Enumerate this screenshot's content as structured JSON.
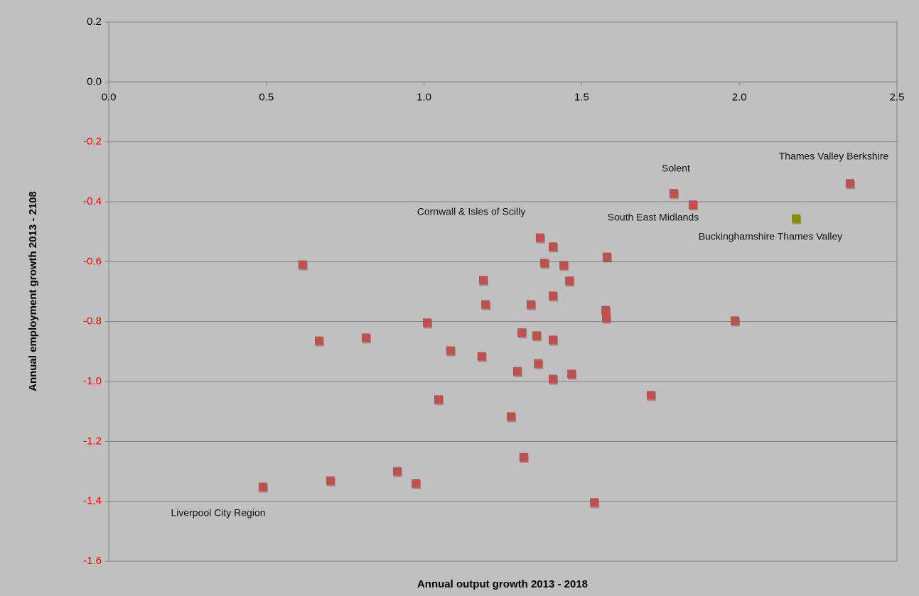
{
  "chart_data": {
    "type": "scatter",
    "x_label": "Annual output growth 2013 - 2018",
    "y_label": "Annual  employment growth 2013 - 2108",
    "xlim": [
      0,
      2.5
    ],
    "xticks": [
      {
        "value": 0,
        "label": "0.0"
      },
      0.5,
      {
        "value": 1,
        "label": "1.0"
      },
      1.5,
      {
        "value": 2,
        "label": "2.0"
      },
      2.5
    ],
    "ylim": [
      -1.6,
      0.2
    ],
    "yticks": [
      0.2,
      {
        "value": 0,
        "label": "0.0"
      },
      -0.2,
      -0.4,
      -0.6,
      -0.8,
      {
        "value": -1,
        "label": "-1.0"
      },
      -1.2,
      -1.4,
      -1.6
    ],
    "ytick_negative_color": "#ff0000",
    "grid": true,
    "series": [
      {
        "color": "#c0504d",
        "x": [
          0.489,
          0.615,
          0.667,
          0.816,
          0.703,
          0.915,
          0.974,
          1.01,
          1.046,
          1.084,
          1.183,
          1.188,
          1.195,
          1.276,
          1.296,
          1.31,
          1.316,
          1.339,
          1.357,
          1.362,
          1.368,
          1.382,
          1.409,
          1.409,
          1.409,
          1.409,
          1.443,
          1.461,
          1.468,
          1.54,
          1.576,
          1.578,
          1.58,
          1.72,
          1.792,
          1.853,
          1.986,
          2.351
        ],
        "values": [
          -1.352,
          -0.61,
          -0.864,
          -0.854,
          -1.331,
          -1.3,
          -1.34,
          -0.804,
          -1.06,
          -0.897,
          -0.916,
          -0.662,
          -0.743,
          -1.117,
          -0.966,
          -0.837,
          -1.253,
          -0.743,
          -0.847,
          -0.94,
          -0.52,
          -0.605,
          -0.55,
          -0.714,
          -0.861,
          -0.992,
          -0.612,
          -0.664,
          -0.975,
          -1.404,
          -0.762,
          -0.788,
          -0.584,
          -1.046,
          -0.372,
          -0.41,
          -0.797,
          -0.339
        ]
      },
      {
        "color": "#8b8b00",
        "x": [
          2.18
        ],
        "values": [
          -0.456
        ]
      }
    ],
    "annotations": [
      "Thames Valley Berkshire",
      "Solent",
      "Cornwall & Isles of Scilly",
      "South East Midlands",
      "Buckinghamshire Thames Valley",
      "Liverpool City Region"
    ]
  }
}
